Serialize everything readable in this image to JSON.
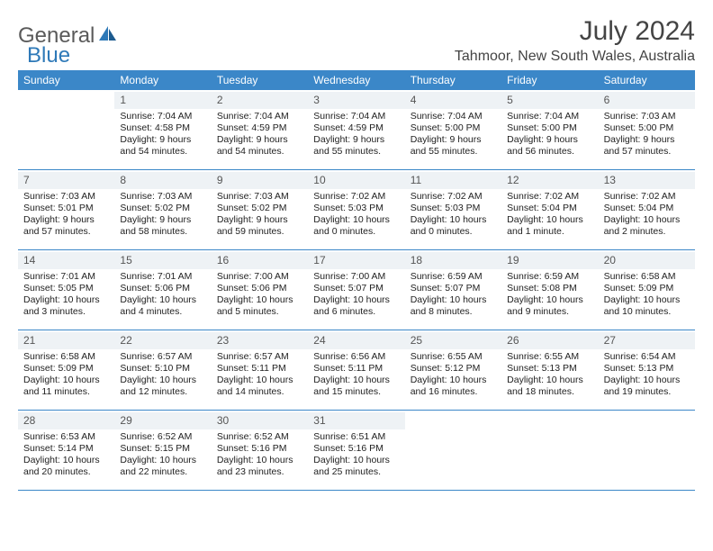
{
  "brand": {
    "part1": "General",
    "part2": "Blue"
  },
  "title": "July 2024",
  "location": "Tahmoor, New South Wales, Australia",
  "colors": {
    "header_bg": "#3b87c8",
    "rule": "#3b87c8",
    "daynum_bg": "#eef2f5"
  },
  "day_names": [
    "Sunday",
    "Monday",
    "Tuesday",
    "Wednesday",
    "Thursday",
    "Friday",
    "Saturday"
  ],
  "weeks": [
    [
      null,
      {
        "n": "1",
        "sr": "Sunrise: 7:04 AM",
        "ss": "Sunset: 4:58 PM",
        "d1": "Daylight: 9 hours",
        "d2": "and 54 minutes."
      },
      {
        "n": "2",
        "sr": "Sunrise: 7:04 AM",
        "ss": "Sunset: 4:59 PM",
        "d1": "Daylight: 9 hours",
        "d2": "and 54 minutes."
      },
      {
        "n": "3",
        "sr": "Sunrise: 7:04 AM",
        "ss": "Sunset: 4:59 PM",
        "d1": "Daylight: 9 hours",
        "d2": "and 55 minutes."
      },
      {
        "n": "4",
        "sr": "Sunrise: 7:04 AM",
        "ss": "Sunset: 5:00 PM",
        "d1": "Daylight: 9 hours",
        "d2": "and 55 minutes."
      },
      {
        "n": "5",
        "sr": "Sunrise: 7:04 AM",
        "ss": "Sunset: 5:00 PM",
        "d1": "Daylight: 9 hours",
        "d2": "and 56 minutes."
      },
      {
        "n": "6",
        "sr": "Sunrise: 7:03 AM",
        "ss": "Sunset: 5:00 PM",
        "d1": "Daylight: 9 hours",
        "d2": "and 57 minutes."
      }
    ],
    [
      {
        "n": "7",
        "sr": "Sunrise: 7:03 AM",
        "ss": "Sunset: 5:01 PM",
        "d1": "Daylight: 9 hours",
        "d2": "and 57 minutes."
      },
      {
        "n": "8",
        "sr": "Sunrise: 7:03 AM",
        "ss": "Sunset: 5:02 PM",
        "d1": "Daylight: 9 hours",
        "d2": "and 58 minutes."
      },
      {
        "n": "9",
        "sr": "Sunrise: 7:03 AM",
        "ss": "Sunset: 5:02 PM",
        "d1": "Daylight: 9 hours",
        "d2": "and 59 minutes."
      },
      {
        "n": "10",
        "sr": "Sunrise: 7:02 AM",
        "ss": "Sunset: 5:03 PM",
        "d1": "Daylight: 10 hours",
        "d2": "and 0 minutes."
      },
      {
        "n": "11",
        "sr": "Sunrise: 7:02 AM",
        "ss": "Sunset: 5:03 PM",
        "d1": "Daylight: 10 hours",
        "d2": "and 0 minutes."
      },
      {
        "n": "12",
        "sr": "Sunrise: 7:02 AM",
        "ss": "Sunset: 5:04 PM",
        "d1": "Daylight: 10 hours",
        "d2": "and 1 minute."
      },
      {
        "n": "13",
        "sr": "Sunrise: 7:02 AM",
        "ss": "Sunset: 5:04 PM",
        "d1": "Daylight: 10 hours",
        "d2": "and 2 minutes."
      }
    ],
    [
      {
        "n": "14",
        "sr": "Sunrise: 7:01 AM",
        "ss": "Sunset: 5:05 PM",
        "d1": "Daylight: 10 hours",
        "d2": "and 3 minutes."
      },
      {
        "n": "15",
        "sr": "Sunrise: 7:01 AM",
        "ss": "Sunset: 5:06 PM",
        "d1": "Daylight: 10 hours",
        "d2": "and 4 minutes."
      },
      {
        "n": "16",
        "sr": "Sunrise: 7:00 AM",
        "ss": "Sunset: 5:06 PM",
        "d1": "Daylight: 10 hours",
        "d2": "and 5 minutes."
      },
      {
        "n": "17",
        "sr": "Sunrise: 7:00 AM",
        "ss": "Sunset: 5:07 PM",
        "d1": "Daylight: 10 hours",
        "d2": "and 6 minutes."
      },
      {
        "n": "18",
        "sr": "Sunrise: 6:59 AM",
        "ss": "Sunset: 5:07 PM",
        "d1": "Daylight: 10 hours",
        "d2": "and 8 minutes."
      },
      {
        "n": "19",
        "sr": "Sunrise: 6:59 AM",
        "ss": "Sunset: 5:08 PM",
        "d1": "Daylight: 10 hours",
        "d2": "and 9 minutes."
      },
      {
        "n": "20",
        "sr": "Sunrise: 6:58 AM",
        "ss": "Sunset: 5:09 PM",
        "d1": "Daylight: 10 hours",
        "d2": "and 10 minutes."
      }
    ],
    [
      {
        "n": "21",
        "sr": "Sunrise: 6:58 AM",
        "ss": "Sunset: 5:09 PM",
        "d1": "Daylight: 10 hours",
        "d2": "and 11 minutes."
      },
      {
        "n": "22",
        "sr": "Sunrise: 6:57 AM",
        "ss": "Sunset: 5:10 PM",
        "d1": "Daylight: 10 hours",
        "d2": "and 12 minutes."
      },
      {
        "n": "23",
        "sr": "Sunrise: 6:57 AM",
        "ss": "Sunset: 5:11 PM",
        "d1": "Daylight: 10 hours",
        "d2": "and 14 minutes."
      },
      {
        "n": "24",
        "sr": "Sunrise: 6:56 AM",
        "ss": "Sunset: 5:11 PM",
        "d1": "Daylight: 10 hours",
        "d2": "and 15 minutes."
      },
      {
        "n": "25",
        "sr": "Sunrise: 6:55 AM",
        "ss": "Sunset: 5:12 PM",
        "d1": "Daylight: 10 hours",
        "d2": "and 16 minutes."
      },
      {
        "n": "26",
        "sr": "Sunrise: 6:55 AM",
        "ss": "Sunset: 5:13 PM",
        "d1": "Daylight: 10 hours",
        "d2": "and 18 minutes."
      },
      {
        "n": "27",
        "sr": "Sunrise: 6:54 AM",
        "ss": "Sunset: 5:13 PM",
        "d1": "Daylight: 10 hours",
        "d2": "and 19 minutes."
      }
    ],
    [
      {
        "n": "28",
        "sr": "Sunrise: 6:53 AM",
        "ss": "Sunset: 5:14 PM",
        "d1": "Daylight: 10 hours",
        "d2": "and 20 minutes."
      },
      {
        "n": "29",
        "sr": "Sunrise: 6:52 AM",
        "ss": "Sunset: 5:15 PM",
        "d1": "Daylight: 10 hours",
        "d2": "and 22 minutes."
      },
      {
        "n": "30",
        "sr": "Sunrise: 6:52 AM",
        "ss": "Sunset: 5:16 PM",
        "d1": "Daylight: 10 hours",
        "d2": "and 23 minutes."
      },
      {
        "n": "31",
        "sr": "Sunrise: 6:51 AM",
        "ss": "Sunset: 5:16 PM",
        "d1": "Daylight: 10 hours",
        "d2": "and 25 minutes."
      },
      null,
      null,
      null
    ]
  ]
}
